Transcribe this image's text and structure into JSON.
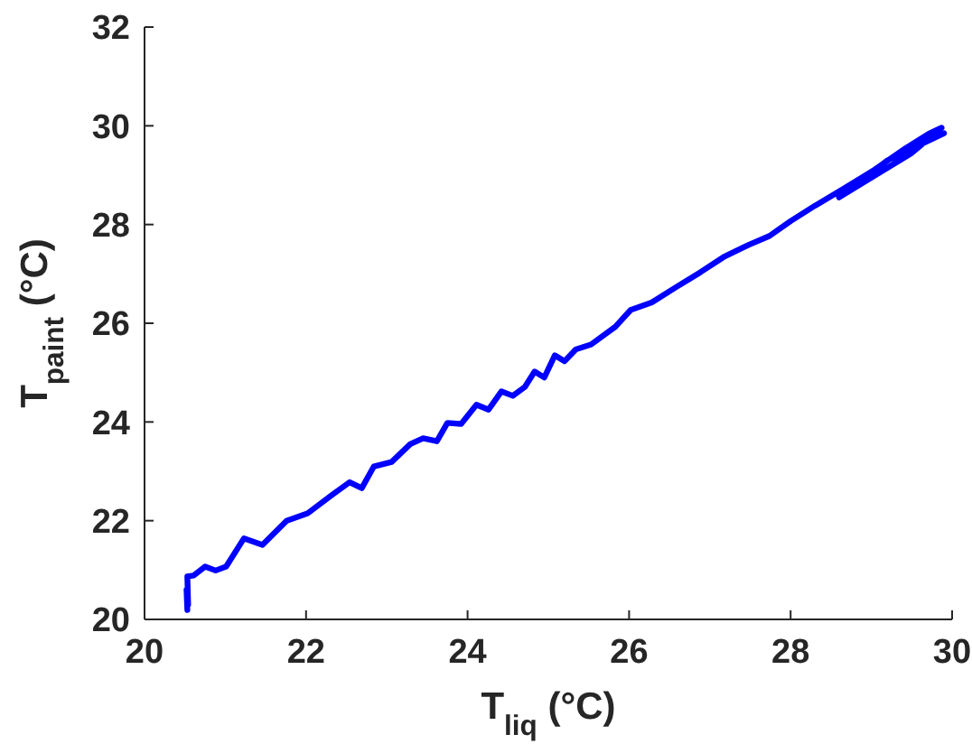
{
  "chart_data": {
    "type": "line",
    "xlabel": "T$_{liq}$ (°C)",
    "ylabel": "T$_{paint}$ (°C)",
    "xlim": [
      20,
      30
    ],
    "ylim": [
      20,
      32
    ],
    "xticks": [
      20,
      22,
      24,
      26,
      28,
      30
    ],
    "yticks": [
      20,
      22,
      24,
      26,
      28,
      30,
      32
    ],
    "grid": false,
    "marker": "none",
    "line_style": "solid",
    "series": [
      {
        "color": "#0000ff",
        "x": [
          20.53,
          20.52,
          20.54,
          20.53,
          20.61,
          20.75,
          20.88,
          21.01,
          21.23,
          21.46,
          21.76,
          22.02,
          22.32,
          22.54,
          22.69,
          22.84,
          23.06,
          23.29,
          23.45,
          23.62,
          23.75,
          23.92,
          24.11,
          24.26,
          24.42,
          24.56,
          24.71,
          24.83,
          24.95,
          25.08,
          25.2,
          25.34,
          25.53,
          25.83,
          26.02,
          26.28,
          26.58,
          26.88,
          27.17,
          27.47,
          27.74,
          28.0,
          28.3,
          28.67,
          29.04,
          29.42,
          29.71,
          29.87,
          29.5,
          29.1,
          28.6,
          29.2,
          29.9
        ],
        "values": [
          20.19,
          20.6,
          20.3,
          20.87,
          20.89,
          21.07,
          20.99,
          21.07,
          21.64,
          21.51,
          22.0,
          22.15,
          22.52,
          22.78,
          22.66,
          23.1,
          23.19,
          23.55,
          23.67,
          23.61,
          23.98,
          23.96,
          24.35,
          24.25,
          24.62,
          24.53,
          24.71,
          25.02,
          24.9,
          25.35,
          25.23,
          25.47,
          25.57,
          25.93,
          26.27,
          26.42,
          26.73,
          27.03,
          27.34,
          27.58,
          27.77,
          28.07,
          28.38,
          28.74,
          29.11,
          29.54,
          29.84,
          29.96,
          29.45,
          29.05,
          28.55,
          29.3,
          29.85
        ]
      }
    ]
  }
}
